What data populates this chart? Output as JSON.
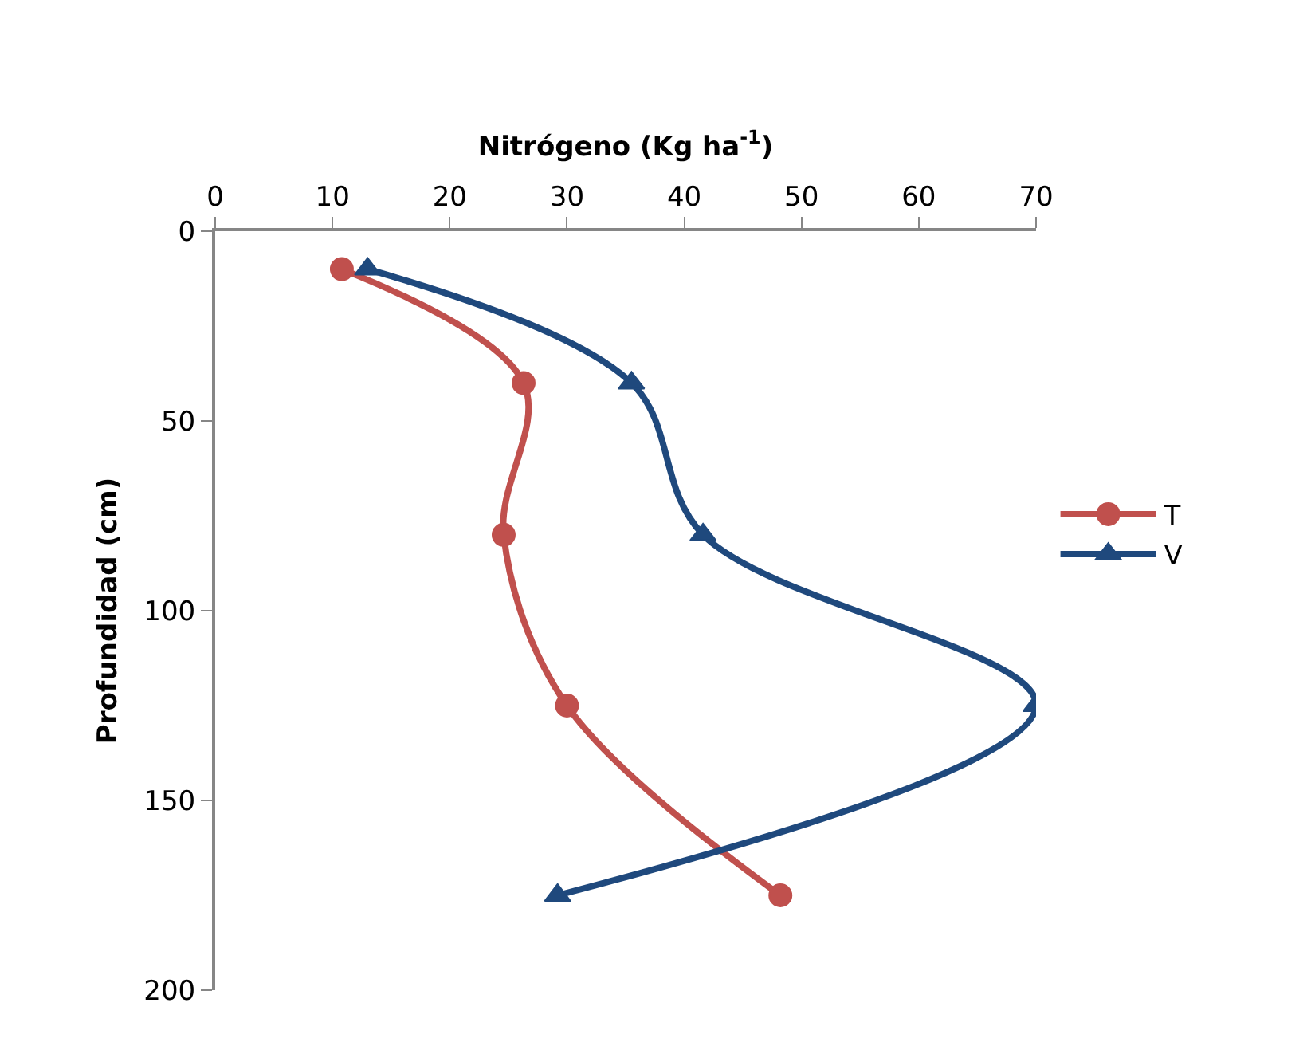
{
  "chart_data": {
    "type": "line",
    "xlabel": "Nitrógeno (Kg ha$^{-1}$)",
    "ylabel": "Profundidad (cm)",
    "xlim": [
      0,
      70
    ],
    "xticks": [
      0,
      10,
      20,
      30,
      40,
      50,
      60,
      70
    ],
    "ylim": [
      200,
      0
    ],
    "yticks": [
      0,
      50,
      100,
      150,
      200
    ],
    "legend": "right",
    "line_style": "solid",
    "series": [
      {
        "name": "T",
        "color": "#c0504d",
        "marker": "circle",
        "x": [
          10.8,
          26.3,
          24.6,
          30.0,
          48.2
        ],
        "values": [
          10,
          40,
          80,
          125,
          175
        ]
      },
      {
        "name": "V",
        "color": "#1f497d",
        "marker": "triangle",
        "x": [
          13.0,
          35.5,
          41.6,
          70.0,
          29.2
        ],
        "values": [
          10,
          40,
          80,
          125,
          175
        ]
      }
    ]
  }
}
